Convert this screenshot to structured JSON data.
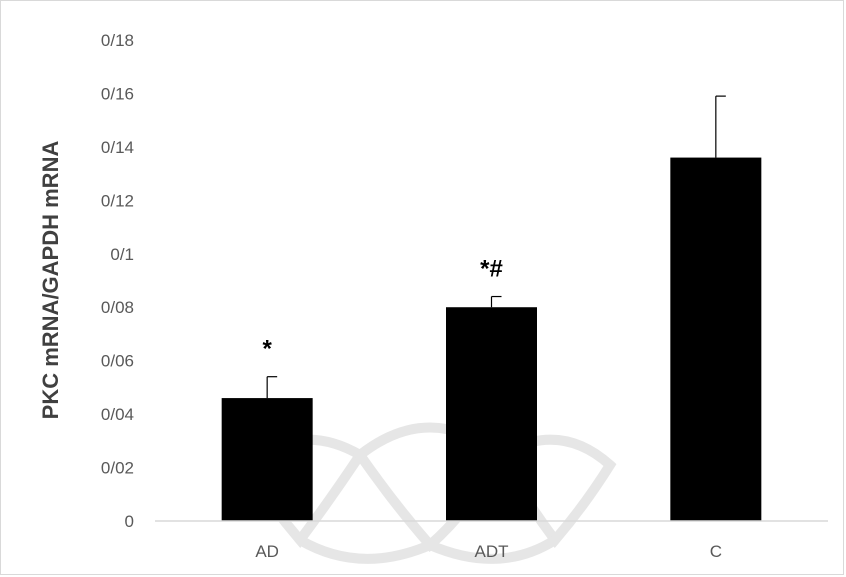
{
  "chart_data": {
    "type": "bar",
    "categories": [
      "AD",
      "ADT",
      "C"
    ],
    "values": [
      0.046,
      0.08,
      0.136
    ],
    "errors": [
      0.008,
      0.004,
      0.023
    ],
    "annotations": [
      "*",
      "*#",
      ""
    ],
    "ylabel": "PKC mRNA/GAPDH mRNA",
    "xlabel": "",
    "ylim": [
      0,
      0.18
    ],
    "yticks": [
      0,
      0.02,
      0.04,
      0.06,
      0.08,
      0.1,
      0.12,
      0.14,
      0.16,
      0.18
    ],
    "ytick_labels": [
      "0",
      "0/02",
      "0/04",
      "0/06",
      "0/08",
      "0/1",
      "0/12",
      "0/14",
      "0/16",
      "0/18"
    ],
    "bar_color": "#000000",
    "axis_color": "#d9d9d9",
    "grid": false,
    "legend": "none"
  }
}
